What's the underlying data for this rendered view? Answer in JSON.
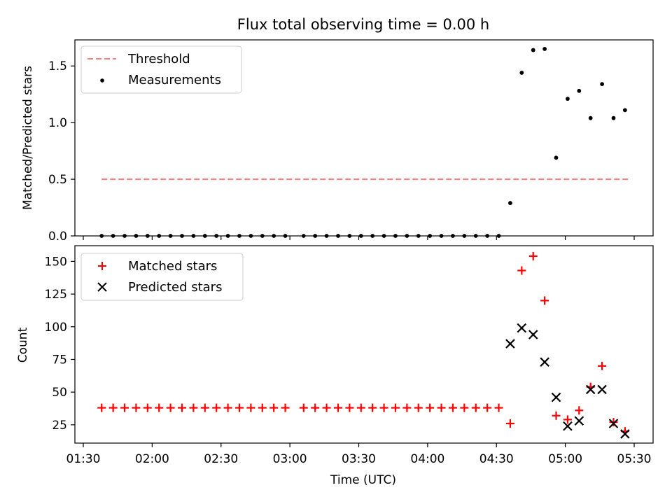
{
  "title": "Flux total observing time = 0.00 h",
  "colors": {
    "threshold": "#ff7f7f",
    "measurement": "#000000",
    "matched": "#ff0000",
    "predicted": "#000000"
  },
  "chart_data": [
    {
      "type": "scatter",
      "ylabel": "Matched/Predicted stars",
      "ylim": [
        0,
        1.73
      ],
      "yticks": [
        0.0,
        0.5,
        1.0,
        1.5
      ],
      "ytick_labels": [
        "0.0",
        "0.5",
        "1.0",
        "1.5"
      ],
      "legend_position": "upper-left",
      "series": [
        {
          "name": "Threshold",
          "style": "dashed-line",
          "x": [
            "01:38",
            "05:28"
          ],
          "y": [
            0.5,
            0.5
          ]
        },
        {
          "name": "Measurements",
          "style": "dots",
          "x": [
            "01:38",
            "01:43",
            "01:48",
            "01:53",
            "01:58",
            "02:03",
            "02:08",
            "02:13",
            "02:18",
            "02:23",
            "02:28",
            "02:33",
            "02:38",
            "02:43",
            "02:48",
            "02:53",
            "02:58",
            "03:06",
            "03:11",
            "03:16",
            "03:21",
            "03:26",
            "03:31",
            "03:36",
            "03:41",
            "03:46",
            "03:51",
            "03:56",
            "04:01",
            "04:06",
            "04:11",
            "04:16",
            "04:21",
            "04:26",
            "04:31",
            "04:36",
            "04:41",
            "04:46",
            "04:51",
            "04:56",
            "05:01",
            "05:06",
            "05:11",
            "05:16",
            "05:21",
            "05:26"
          ],
          "y": [
            0,
            0,
            0,
            0,
            0,
            0,
            0,
            0,
            0,
            0,
            0,
            0,
            0,
            0,
            0,
            0,
            0,
            0,
            0,
            0,
            0,
            0,
            0,
            0,
            0,
            0,
            0,
            0,
            0,
            0,
            0,
            0,
            0,
            0,
            0,
            0.29,
            1.44,
            1.64,
            1.65,
            0.69,
            1.21,
            1.28,
            1.04,
            1.34,
            1.04,
            1.11
          ]
        }
      ]
    },
    {
      "type": "scatter",
      "ylabel": "Count",
      "xlabel": "Time (UTC)",
      "ylim": [
        11,
        162
      ],
      "yticks": [
        25,
        50,
        75,
        100,
        125,
        150
      ],
      "ytick_labels": [
        "25",
        "50",
        "75",
        "100",
        "125",
        "150"
      ],
      "xticks": [
        "01:30",
        "02:00",
        "02:30",
        "03:00",
        "03:30",
        "04:00",
        "04:30",
        "05:00",
        "05:30"
      ],
      "legend_position": "upper-left",
      "series": [
        {
          "name": "Matched stars",
          "marker": "plus",
          "x": [
            "01:38",
            "01:43",
            "01:48",
            "01:53",
            "01:58",
            "02:03",
            "02:08",
            "02:13",
            "02:18",
            "02:23",
            "02:28",
            "02:33",
            "02:38",
            "02:43",
            "02:48",
            "02:53",
            "02:58",
            "03:06",
            "03:11",
            "03:16",
            "03:21",
            "03:26",
            "03:31",
            "03:36",
            "03:41",
            "03:46",
            "03:51",
            "03:56",
            "04:01",
            "04:06",
            "04:11",
            "04:16",
            "04:21",
            "04:26",
            "04:31",
            "04:36",
            "04:41",
            "04:46",
            "04:51",
            "04:56",
            "05:01",
            "05:06",
            "05:11",
            "05:16",
            "05:21",
            "05:26"
          ],
          "y": [
            38,
            38,
            38,
            38,
            38,
            38,
            38,
            38,
            38,
            38,
            38,
            38,
            38,
            38,
            38,
            38,
            38,
            38,
            38,
            38,
            38,
            38,
            38,
            38,
            38,
            38,
            38,
            38,
            38,
            38,
            38,
            38,
            38,
            38,
            38,
            26,
            143,
            154,
            120,
            32,
            29,
            36,
            54,
            70,
            27,
            20
          ]
        },
        {
          "name": "Predicted stars",
          "marker": "x",
          "x": [
            "04:36",
            "04:41",
            "04:46",
            "04:51",
            "04:56",
            "05:01",
            "05:06",
            "05:11",
            "05:16",
            "05:21",
            "05:26"
          ],
          "y": [
            87,
            99,
            94,
            73,
            46,
            24,
            28,
            52,
            52,
            26,
            18
          ]
        }
      ]
    }
  ]
}
